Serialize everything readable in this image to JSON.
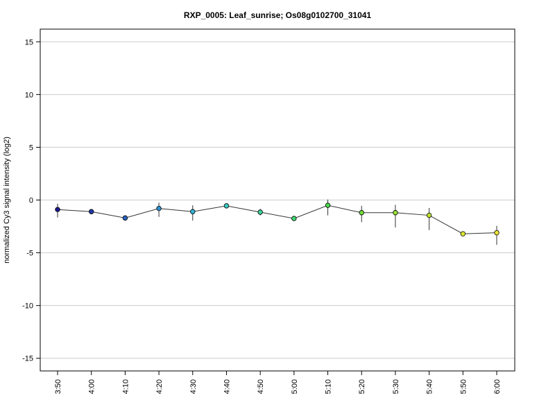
{
  "chart_data": {
    "type": "line",
    "title": "RXP_0005: Leaf_sunrise; Os08g0102700_31041",
    "xlabel": "",
    "ylabel": "normalized Cy3 signal intensity (log2)",
    "ylim": [
      -16.2,
      16.2
    ],
    "yticks": [
      -15,
      -10,
      -5,
      0,
      5,
      10,
      15
    ],
    "grid": true,
    "categories": [
      "3:50",
      "4:00",
      "4:10",
      "4:20",
      "4:30",
      "4:40",
      "4:50",
      "5:00",
      "5:10",
      "5:20",
      "5:30",
      "5:40",
      "5:50",
      "6:00"
    ],
    "series": [
      {
        "values": [
          -0.9,
          -1.1,
          -1.7,
          -0.8,
          -1.1,
          -0.55,
          -1.15,
          -1.75,
          -0.5,
          -1.2,
          -1.2,
          -1.45,
          -3.2,
          -3.1
        ],
        "error_low": [
          -1.65,
          -1.2,
          -1.95,
          -1.6,
          -1.95,
          -0.65,
          -1.45,
          -1.9,
          -1.45,
          -2.1,
          -2.6,
          -2.85,
          -3.3,
          -4.25
        ],
        "error_high": [
          -0.35,
          -1.0,
          -1.45,
          -0.25,
          -0.5,
          -0.45,
          -0.85,
          -1.6,
          0.05,
          -0.55,
          -0.45,
          -0.75,
          -3.1,
          -2.45
        ],
        "point_colors": [
          "#1a1a8c",
          "#2038a8",
          "#2a63c2",
          "#2f8fd0",
          "#35b1d6",
          "#3cc9c2",
          "#3dd49c",
          "#40d673",
          "#4cd94d",
          "#72dd3a",
          "#98e134",
          "#bde332",
          "#dce533",
          "#f0e437"
        ]
      }
    ]
  }
}
